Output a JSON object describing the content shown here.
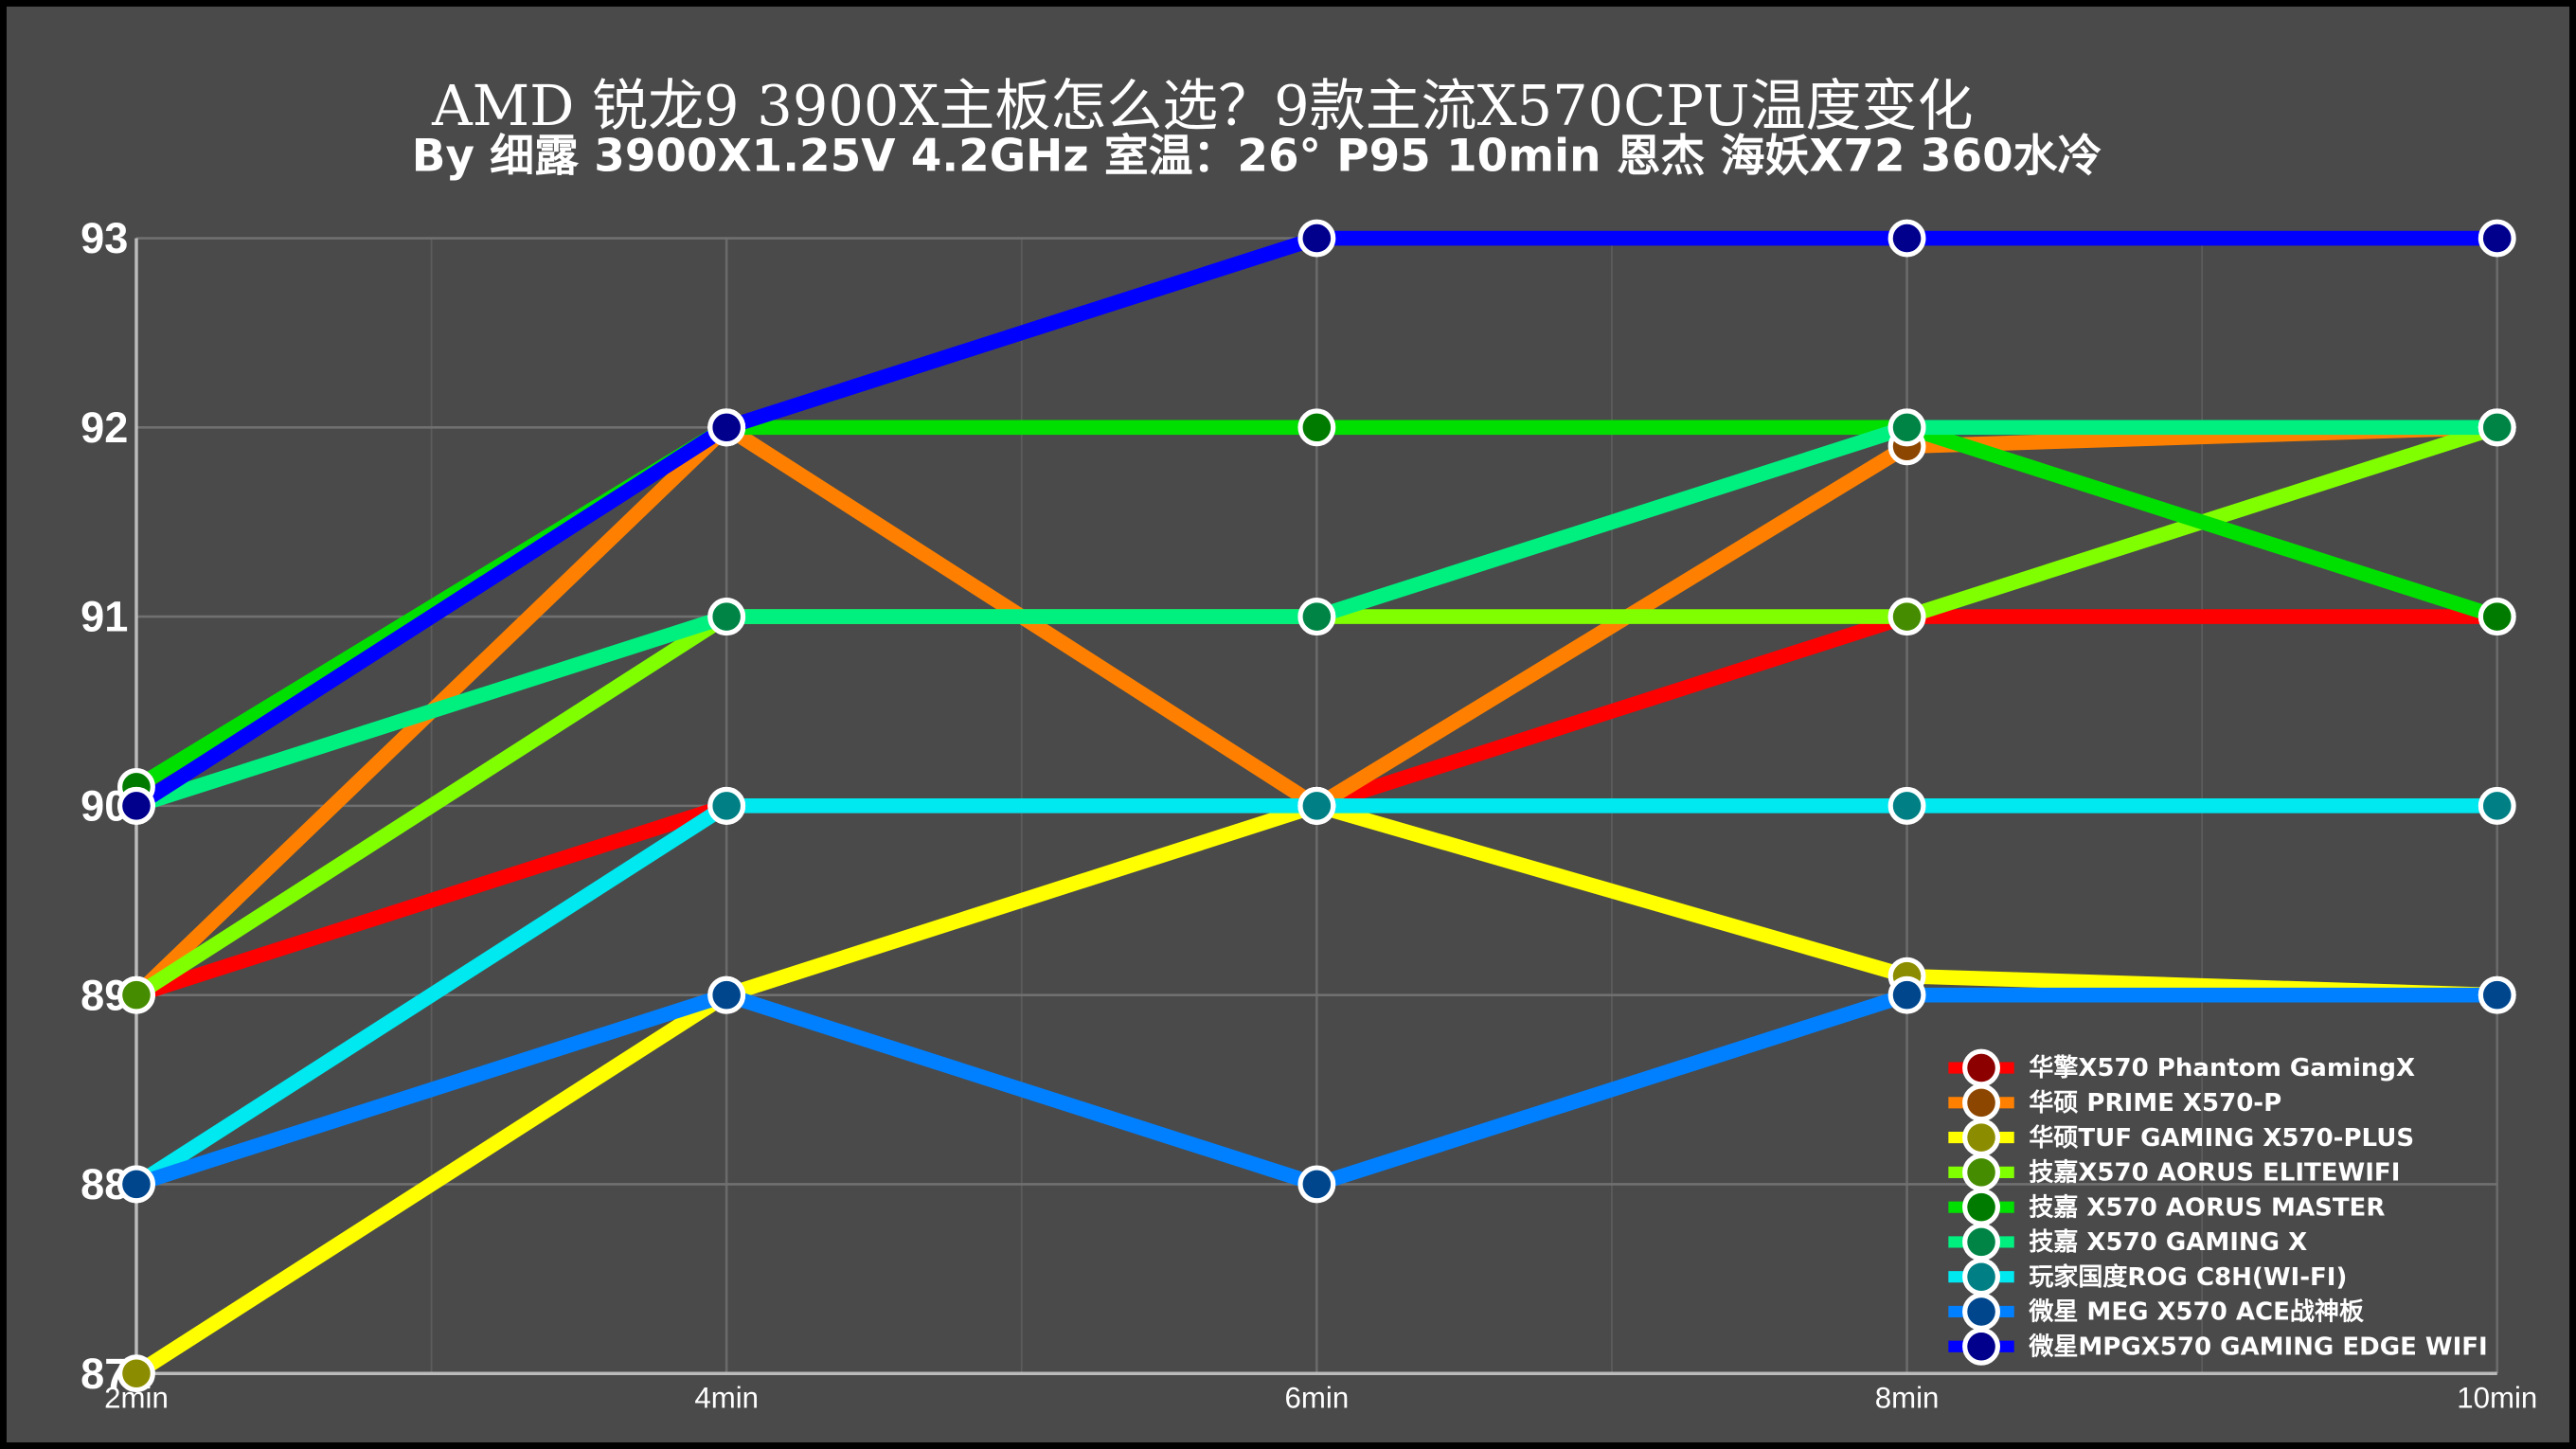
{
  "chart_data": {
    "type": "line",
    "title": "AMD 锐龙9 3900X主板怎么选？9款主流X570CPU温度变化",
    "subtitle": "By 细露 3900X1.25V 4.2GHz 室温：26° P95 10min 恩杰 海妖X72 360水冷",
    "categories": [
      "2min",
      "4min",
      "6min",
      "8min",
      "10min"
    ],
    "ylim": [
      87,
      93
    ],
    "yticks": [
      87,
      88,
      89,
      90,
      91,
      92,
      93
    ],
    "grid": true,
    "legend": "lower right",
    "series": [
      {
        "name": "华擎X570 Phantom GamingX",
        "color": "#ff0000",
        "values": [
          89,
          90,
          90,
          91,
          91
        ]
      },
      {
        "name": "华硕 PRIME X570-P",
        "color": "#ff8000",
        "values": [
          89,
          92,
          90,
          91.9,
          92
        ]
      },
      {
        "name": "华硕TUF GAMING X570-PLUS",
        "color": "#ffff00",
        "values": [
          87,
          89,
          90,
          89.1,
          89
        ]
      },
      {
        "name": "技嘉X570 AORUS ELITEWIFI",
        "color": "#80ff00",
        "values": [
          89,
          91,
          91,
          91,
          92
        ]
      },
      {
        "name": "技嘉 X570 AORUS MASTER",
        "color": "#00e000",
        "values": [
          90.1,
          92,
          92,
          92,
          91
        ]
      },
      {
        "name": "技嘉 X570 GAMING X",
        "color": "#00f080",
        "values": [
          90,
          91,
          91,
          92,
          92
        ]
      },
      {
        "name": "玩家国度ROG C8H(WI-FI)",
        "color": "#00e8f0",
        "values": [
          88,
          90,
          90,
          90,
          90
        ]
      },
      {
        "name": "微星 MEG X570 ACE战神板",
        "color": "#0080ff",
        "values": [
          88,
          89,
          88,
          89,
          89
        ]
      },
      {
        "name": "微星MPGX570 GAMING EDGE WIFI",
        "color": "#0000ff",
        "values": [
          90,
          92,
          93,
          93,
          93
        ]
      }
    ]
  }
}
